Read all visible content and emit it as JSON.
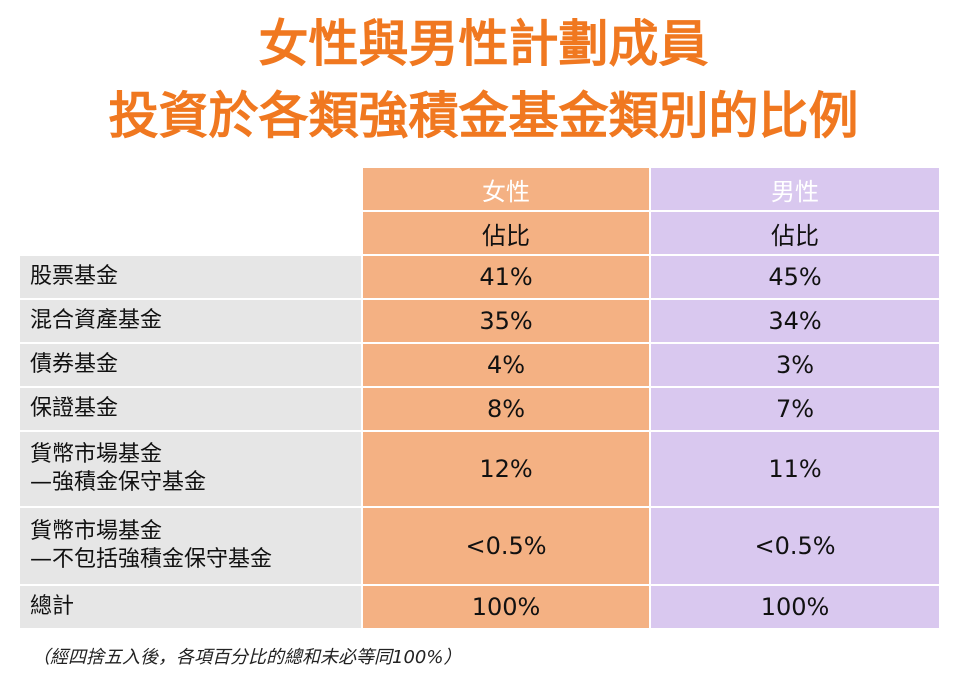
{
  "title": {
    "line1": "女性與男性計劃成員",
    "line2": "投資於各類強積金基金類別的比例"
  },
  "table": {
    "columns": {
      "female": "女性",
      "male": "男性"
    },
    "subheader": {
      "female": "佔比",
      "male": "佔比"
    },
    "rows": [
      {
        "label": "股票基金",
        "label2": "",
        "female": "41%",
        "male": "45%"
      },
      {
        "label": "混合資產基金",
        "label2": "",
        "female": "35%",
        "male": "34%"
      },
      {
        "label": "債券基金",
        "label2": "",
        "female": "4%",
        "male": "3%"
      },
      {
        "label": "保證基金",
        "label2": "",
        "female": "8%",
        "male": "7%"
      },
      {
        "label": "貨幣市場基金",
        "label2": "—強積金保守基金",
        "female": "12%",
        "male": "11%"
      },
      {
        "label": "貨幣市場基金",
        "label2": "—不包括強積金保守基金",
        "female": "<0.5%",
        "male": "<0.5%"
      },
      {
        "label": "總計",
        "label2": "",
        "female": "100%",
        "male": "100%"
      }
    ]
  },
  "footnote": "（經四捨五入後，各項百分比的總和未必等同100%）",
  "colors": {
    "title": "#f07820",
    "female": "#f4b183",
    "male": "#d9c8ef",
    "label": "#e6e6e6"
  }
}
